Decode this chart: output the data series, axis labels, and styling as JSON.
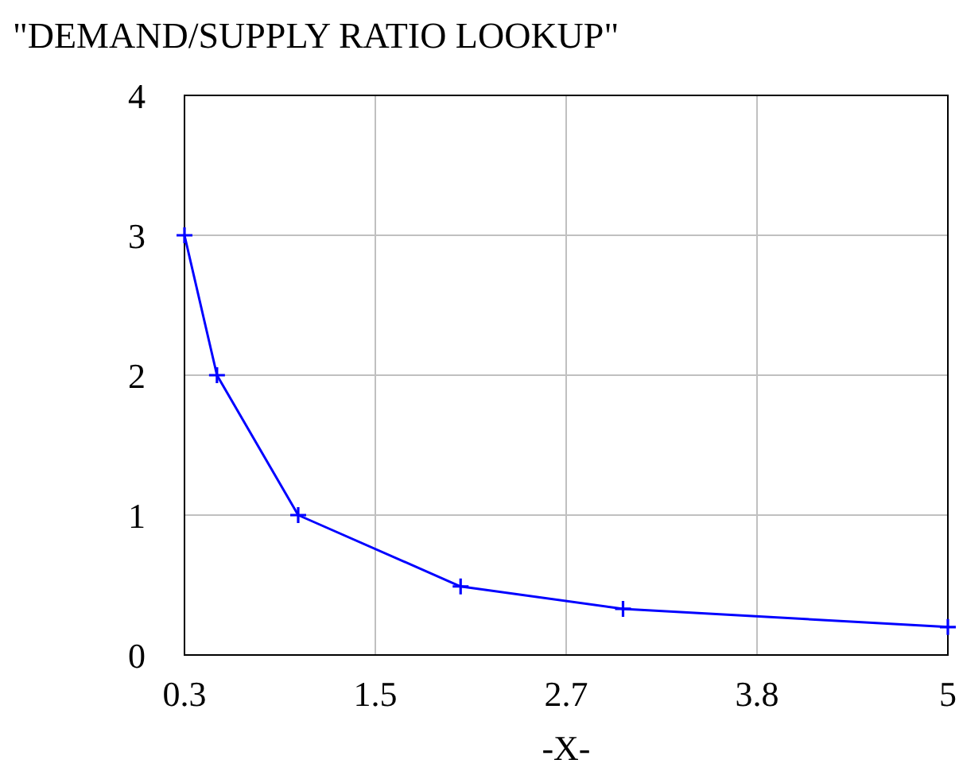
{
  "chart_data": {
    "type": "line",
    "title": "\"DEMAND/SUPPLY RATIO LOOKUP\"",
    "xlabel": "-X-",
    "x": [
      0.3,
      0.5,
      1,
      2,
      3,
      5
    ],
    "series": [
      {
        "color": "#0000ff",
        "values": [
          3,
          2,
          1,
          0.49,
          0.33,
          0.2
        ]
      }
    ],
    "xlim": [
      0.3,
      5
    ],
    "xticks": [
      {
        "value": 0.3,
        "label": "0.3"
      },
      {
        "value": 1.475,
        "label": "1.5"
      },
      {
        "value": 2.65,
        "label": "2.7"
      },
      {
        "value": 3.825,
        "label": "3.8"
      },
      {
        "value": 5,
        "label": "5"
      }
    ],
    "ylim": [
      0,
      4
    ],
    "yticks": [
      0,
      1,
      2,
      3,
      4
    ],
    "grid": true,
    "marker": "cross",
    "line_style": "solid"
  }
}
